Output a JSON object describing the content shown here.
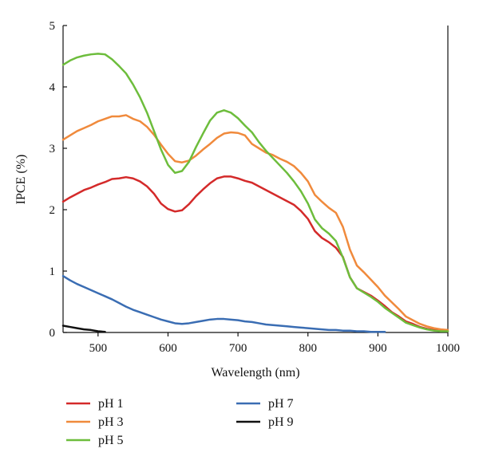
{
  "chart_data": {
    "type": "line",
    "xlabel": "Wavelength (nm)",
    "ylabel": "IPCE (%)",
    "xlim": [
      450,
      1000
    ],
    "ylim": [
      0,
      5
    ],
    "xticks": [
      500,
      600,
      700,
      800,
      900,
      1000
    ],
    "yticks": [
      0,
      1,
      2,
      3,
      4,
      5
    ],
    "grid": false,
    "legend_position": "bottom",
    "series": [
      {
        "name": "pH 1",
        "color": "#d42a2a",
        "points": [
          [
            450,
            2.13
          ],
          [
            460,
            2.2
          ],
          [
            470,
            2.26
          ],
          [
            480,
            2.32
          ],
          [
            490,
            2.36
          ],
          [
            500,
            2.41
          ],
          [
            510,
            2.45
          ],
          [
            520,
            2.5
          ],
          [
            530,
            2.51
          ],
          [
            540,
            2.53
          ],
          [
            550,
            2.51
          ],
          [
            560,
            2.46
          ],
          [
            570,
            2.38
          ],
          [
            580,
            2.26
          ],
          [
            590,
            2.1
          ],
          [
            600,
            2.01
          ],
          [
            610,
            1.97
          ],
          [
            620,
            1.99
          ],
          [
            630,
            2.09
          ],
          [
            640,
            2.22
          ],
          [
            650,
            2.33
          ],
          [
            660,
            2.43
          ],
          [
            670,
            2.51
          ],
          [
            680,
            2.54
          ],
          [
            690,
            2.54
          ],
          [
            700,
            2.51
          ],
          [
            710,
            2.47
          ],
          [
            720,
            2.44
          ],
          [
            730,
            2.38
          ],
          [
            740,
            2.32
          ],
          [
            750,
            2.26
          ],
          [
            760,
            2.2
          ],
          [
            770,
            2.14
          ],
          [
            780,
            2.08
          ],
          [
            790,
            1.98
          ],
          [
            800,
            1.85
          ],
          [
            810,
            1.65
          ],
          [
            820,
            1.54
          ],
          [
            830,
            1.47
          ],
          [
            840,
            1.38
          ],
          [
            850,
            1.23
          ],
          [
            860,
            0.9
          ],
          [
            870,
            0.72
          ],
          [
            880,
            0.66
          ],
          [
            890,
            0.6
          ],
          [
            900,
            0.52
          ],
          [
            910,
            0.43
          ],
          [
            920,
            0.33
          ],
          [
            930,
            0.26
          ],
          [
            940,
            0.18
          ],
          [
            950,
            0.14
          ],
          [
            960,
            0.09
          ],
          [
            970,
            0.06
          ],
          [
            980,
            0.04
          ],
          [
            990,
            0.03
          ],
          [
            1000,
            0.02
          ]
        ]
      },
      {
        "name": "pH 3",
        "color": "#f08a3c",
        "points": [
          [
            450,
            3.14
          ],
          [
            460,
            3.21
          ],
          [
            470,
            3.28
          ],
          [
            480,
            3.33
          ],
          [
            490,
            3.38
          ],
          [
            500,
            3.44
          ],
          [
            510,
            3.48
          ],
          [
            520,
            3.52
          ],
          [
            530,
            3.52
          ],
          [
            540,
            3.54
          ],
          [
            550,
            3.48
          ],
          [
            560,
            3.44
          ],
          [
            570,
            3.35
          ],
          [
            580,
            3.22
          ],
          [
            590,
            3.06
          ],
          [
            600,
            2.91
          ],
          [
            610,
            2.79
          ],
          [
            620,
            2.77
          ],
          [
            630,
            2.8
          ],
          [
            640,
            2.88
          ],
          [
            650,
            2.98
          ],
          [
            660,
            3.07
          ],
          [
            670,
            3.17
          ],
          [
            680,
            3.24
          ],
          [
            690,
            3.26
          ],
          [
            700,
            3.25
          ],
          [
            710,
            3.21
          ],
          [
            720,
            3.07
          ],
          [
            730,
            3.0
          ],
          [
            740,
            2.93
          ],
          [
            750,
            2.89
          ],
          [
            760,
            2.83
          ],
          [
            770,
            2.78
          ],
          [
            780,
            2.71
          ],
          [
            790,
            2.6
          ],
          [
            800,
            2.46
          ],
          [
            810,
            2.24
          ],
          [
            820,
            2.13
          ],
          [
            830,
            2.03
          ],
          [
            840,
            1.95
          ],
          [
            850,
            1.72
          ],
          [
            860,
            1.35
          ],
          [
            870,
            1.09
          ],
          [
            880,
            0.98
          ],
          [
            890,
            0.86
          ],
          [
            900,
            0.74
          ],
          [
            910,
            0.6
          ],
          [
            920,
            0.49
          ],
          [
            930,
            0.38
          ],
          [
            940,
            0.26
          ],
          [
            950,
            0.2
          ],
          [
            960,
            0.14
          ],
          [
            970,
            0.1
          ],
          [
            980,
            0.07
          ],
          [
            990,
            0.05
          ],
          [
            1000,
            0.04
          ]
        ]
      },
      {
        "name": "pH 5",
        "color": "#6dbd3c",
        "points": [
          [
            450,
            4.36
          ],
          [
            460,
            4.43
          ],
          [
            470,
            4.48
          ],
          [
            480,
            4.51
          ],
          [
            490,
            4.53
          ],
          [
            500,
            4.54
          ],
          [
            510,
            4.53
          ],
          [
            520,
            4.45
          ],
          [
            530,
            4.34
          ],
          [
            540,
            4.22
          ],
          [
            550,
            4.04
          ],
          [
            560,
            3.83
          ],
          [
            570,
            3.58
          ],
          [
            580,
            3.28
          ],
          [
            590,
            2.98
          ],
          [
            600,
            2.73
          ],
          [
            610,
            2.6
          ],
          [
            620,
            2.63
          ],
          [
            630,
            2.78
          ],
          [
            640,
            3.02
          ],
          [
            650,
            3.24
          ],
          [
            660,
            3.45
          ],
          [
            670,
            3.58
          ],
          [
            680,
            3.62
          ],
          [
            690,
            3.58
          ],
          [
            700,
            3.49
          ],
          [
            710,
            3.37
          ],
          [
            720,
            3.26
          ],
          [
            730,
            3.1
          ],
          [
            740,
            2.96
          ],
          [
            750,
            2.84
          ],
          [
            760,
            2.72
          ],
          [
            770,
            2.6
          ],
          [
            780,
            2.46
          ],
          [
            790,
            2.3
          ],
          [
            800,
            2.1
          ],
          [
            810,
            1.84
          ],
          [
            820,
            1.7
          ],
          [
            830,
            1.61
          ],
          [
            840,
            1.49
          ],
          [
            850,
            1.22
          ],
          [
            860,
            0.9
          ],
          [
            870,
            0.72
          ],
          [
            880,
            0.65
          ],
          [
            890,
            0.58
          ],
          [
            900,
            0.5
          ],
          [
            910,
            0.4
          ],
          [
            920,
            0.32
          ],
          [
            930,
            0.24
          ],
          [
            940,
            0.16
          ],
          [
            950,
            0.12
          ],
          [
            960,
            0.08
          ],
          [
            970,
            0.05
          ],
          [
            980,
            0.03
          ],
          [
            990,
            0.02
          ],
          [
            1000,
            0.02
          ]
        ]
      },
      {
        "name": "pH 7",
        "color": "#3a6db3",
        "points": [
          [
            450,
            0.92
          ],
          [
            460,
            0.85
          ],
          [
            470,
            0.79
          ],
          [
            480,
            0.74
          ],
          [
            490,
            0.69
          ],
          [
            500,
            0.64
          ],
          [
            510,
            0.59
          ],
          [
            520,
            0.54
          ],
          [
            530,
            0.48
          ],
          [
            540,
            0.42
          ],
          [
            550,
            0.37
          ],
          [
            560,
            0.33
          ],
          [
            570,
            0.29
          ],
          [
            580,
            0.25
          ],
          [
            590,
            0.21
          ],
          [
            600,
            0.18
          ],
          [
            610,
            0.15
          ],
          [
            620,
            0.14
          ],
          [
            630,
            0.15
          ],
          [
            640,
            0.17
          ],
          [
            650,
            0.19
          ],
          [
            660,
            0.21
          ],
          [
            670,
            0.22
          ],
          [
            680,
            0.22
          ],
          [
            690,
            0.21
          ],
          [
            700,
            0.2
          ],
          [
            710,
            0.18
          ],
          [
            720,
            0.17
          ],
          [
            730,
            0.15
          ],
          [
            740,
            0.13
          ],
          [
            750,
            0.12
          ],
          [
            760,
            0.11
          ],
          [
            770,
            0.1
          ],
          [
            780,
            0.09
          ],
          [
            790,
            0.08
          ],
          [
            800,
            0.07
          ],
          [
            810,
            0.06
          ],
          [
            820,
            0.05
          ],
          [
            830,
            0.04
          ],
          [
            840,
            0.04
          ],
          [
            850,
            0.03
          ],
          [
            860,
            0.03
          ],
          [
            870,
            0.02
          ],
          [
            880,
            0.02
          ],
          [
            890,
            0.01
          ],
          [
            900,
            0.01
          ],
          [
            910,
            0.01
          ]
        ]
      },
      {
        "name": "pH 9",
        "color": "#111111",
        "points": [
          [
            450,
            0.11
          ],
          [
            460,
            0.09
          ],
          [
            470,
            0.07
          ],
          [
            480,
            0.05
          ],
          [
            490,
            0.04
          ],
          [
            500,
            0.02
          ],
          [
            510,
            0.01
          ]
        ]
      }
    ]
  }
}
